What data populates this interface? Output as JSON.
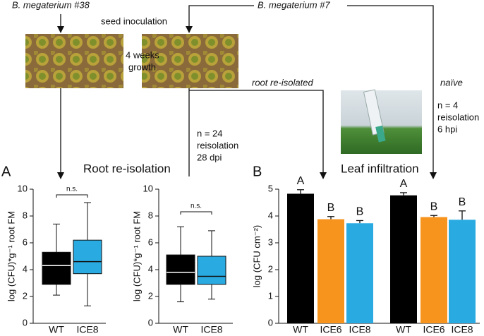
{
  "schematic": {
    "strain_left": "B. megaterium #38",
    "strain_right": "B. megaterium #7",
    "seed": "seed inoculation",
    "growth": [
      "4 weeks",
      "growth"
    ],
    "root_reisolated": "root re-isolated",
    "naive": "naïve",
    "n_root": [
      "n = 24",
      "reisolation",
      "28 dpi"
    ],
    "n_leaf": [
      "n = 4",
      "reisolation",
      "6 hpi"
    ],
    "root_title": "Root re-isolation",
    "leaf_title": "Leaf infiltration",
    "panel_a": "A",
    "panel_b": "B"
  },
  "chart_data": [
    {
      "type": "box",
      "ylabel": "log (CFU)*g⁻¹ root FM",
      "categories": [
        "WT",
        "ICE8"
      ],
      "colors": [
        "#000000",
        "#29abe2"
      ],
      "label_colors": [
        "#000000",
        "#29abe2"
      ],
      "boxes": [
        {
          "low": 2.1,
          "q1": 2.9,
          "median": 4.3,
          "q3": 5.3,
          "high": 7.4
        },
        {
          "low": 1.3,
          "q1": 3.7,
          "median": 4.6,
          "q3": 6.2,
          "high": 9.0
        }
      ],
      "annotation": "n.s.",
      "ylim": [
        0,
        10
      ],
      "yticks": [
        0,
        2,
        4,
        6,
        8,
        10
      ]
    },
    {
      "type": "box",
      "ylabel": "log (CFU)*g⁻¹ root FM",
      "categories": [
        "WT",
        "ICE8"
      ],
      "colors": [
        "#000000",
        "#29abe2"
      ],
      "label_colors": [
        "#000000",
        "#29abe2"
      ],
      "boxes": [
        {
          "low": 1.6,
          "q1": 2.9,
          "median": 3.8,
          "q3": 5.1,
          "high": 7.2
        },
        {
          "low": 1.8,
          "q1": 2.9,
          "median": 3.5,
          "q3": 5.0,
          "high": 6.9
        }
      ],
      "annotation": "n.s.",
      "ylim": [
        0,
        10
      ],
      "yticks": [
        0,
        2,
        4,
        6,
        8,
        10
      ]
    },
    {
      "type": "bar",
      "ylabel": "log (CFU cm⁻²)",
      "categories": [
        "WT",
        "ICE6",
        "ICE8",
        "WT",
        "ICE6",
        "ICE8"
      ],
      "values": [
        4.83,
        3.88,
        3.73,
        4.77,
        3.96,
        3.86
      ],
      "errors": [
        0.15,
        0.1,
        0.1,
        0.1,
        0.06,
        0.33
      ],
      "letters": [
        "A",
        "B",
        "B",
        "A",
        "B",
        "B"
      ],
      "colors": [
        "#000000",
        "#f7941d",
        "#29abe2",
        "#000000",
        "#f7941d",
        "#29abe2"
      ],
      "label_colors": [
        "#000000",
        "#f7941d",
        "#29abe2",
        "#000000",
        "#f7941d",
        "#29abe2"
      ],
      "ylim": [
        0,
        5
      ],
      "yticks": [
        0,
        1,
        2,
        3,
        4,
        5
      ]
    }
  ]
}
